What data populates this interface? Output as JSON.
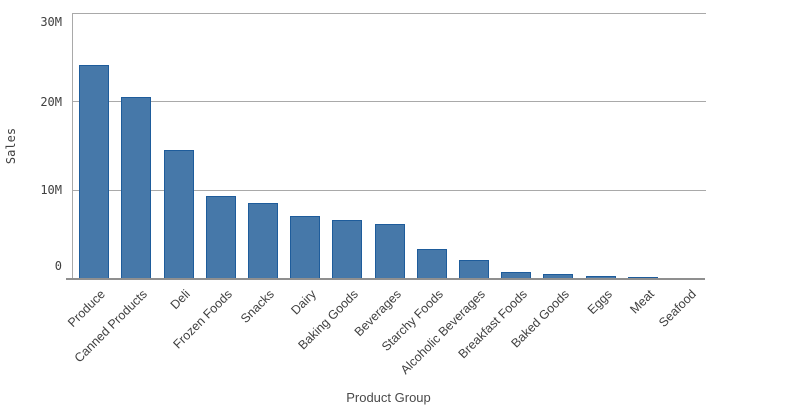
{
  "chart_data": {
    "type": "bar",
    "title": "",
    "xlabel": "Product Group",
    "ylabel": "Sales",
    "categories": [
      "Produce",
      "Canned Products",
      "Deli",
      "Frozen Foods",
      "Snacks",
      "Dairy",
      "Baking Goods",
      "Beverages",
      "Starchy Foods",
      "Alcoholic Beverages",
      "Breakfast Foods",
      "Baked Goods",
      "Eggs",
      "Meat",
      "Seafood"
    ],
    "values_millions": [
      24.1,
      20.5,
      14.6,
      9.4,
      8.6,
      7.1,
      6.7,
      6.2,
      3.4,
      2.2,
      0.8,
      0.6,
      0.4,
      0.2,
      0.1
    ],
    "unit": "M",
    "ylim": [
      0,
      30
    ],
    "y_ticks": [
      {
        "value": 30,
        "label": "30M"
      },
      {
        "value": 20,
        "label": "20M"
      },
      {
        "value": 10,
        "label": "10M"
      },
      {
        "value": 0,
        "label": "0"
      }
    ],
    "grid": true,
    "legend": "none",
    "colors": {
      "bar_fill": "#4678a9",
      "bar_border": "#1e5c9b",
      "bar_faint": "#b9cbde",
      "grid": "#a9a9a9",
      "axis": "#8f8f8f",
      "text": "#404040"
    }
  }
}
